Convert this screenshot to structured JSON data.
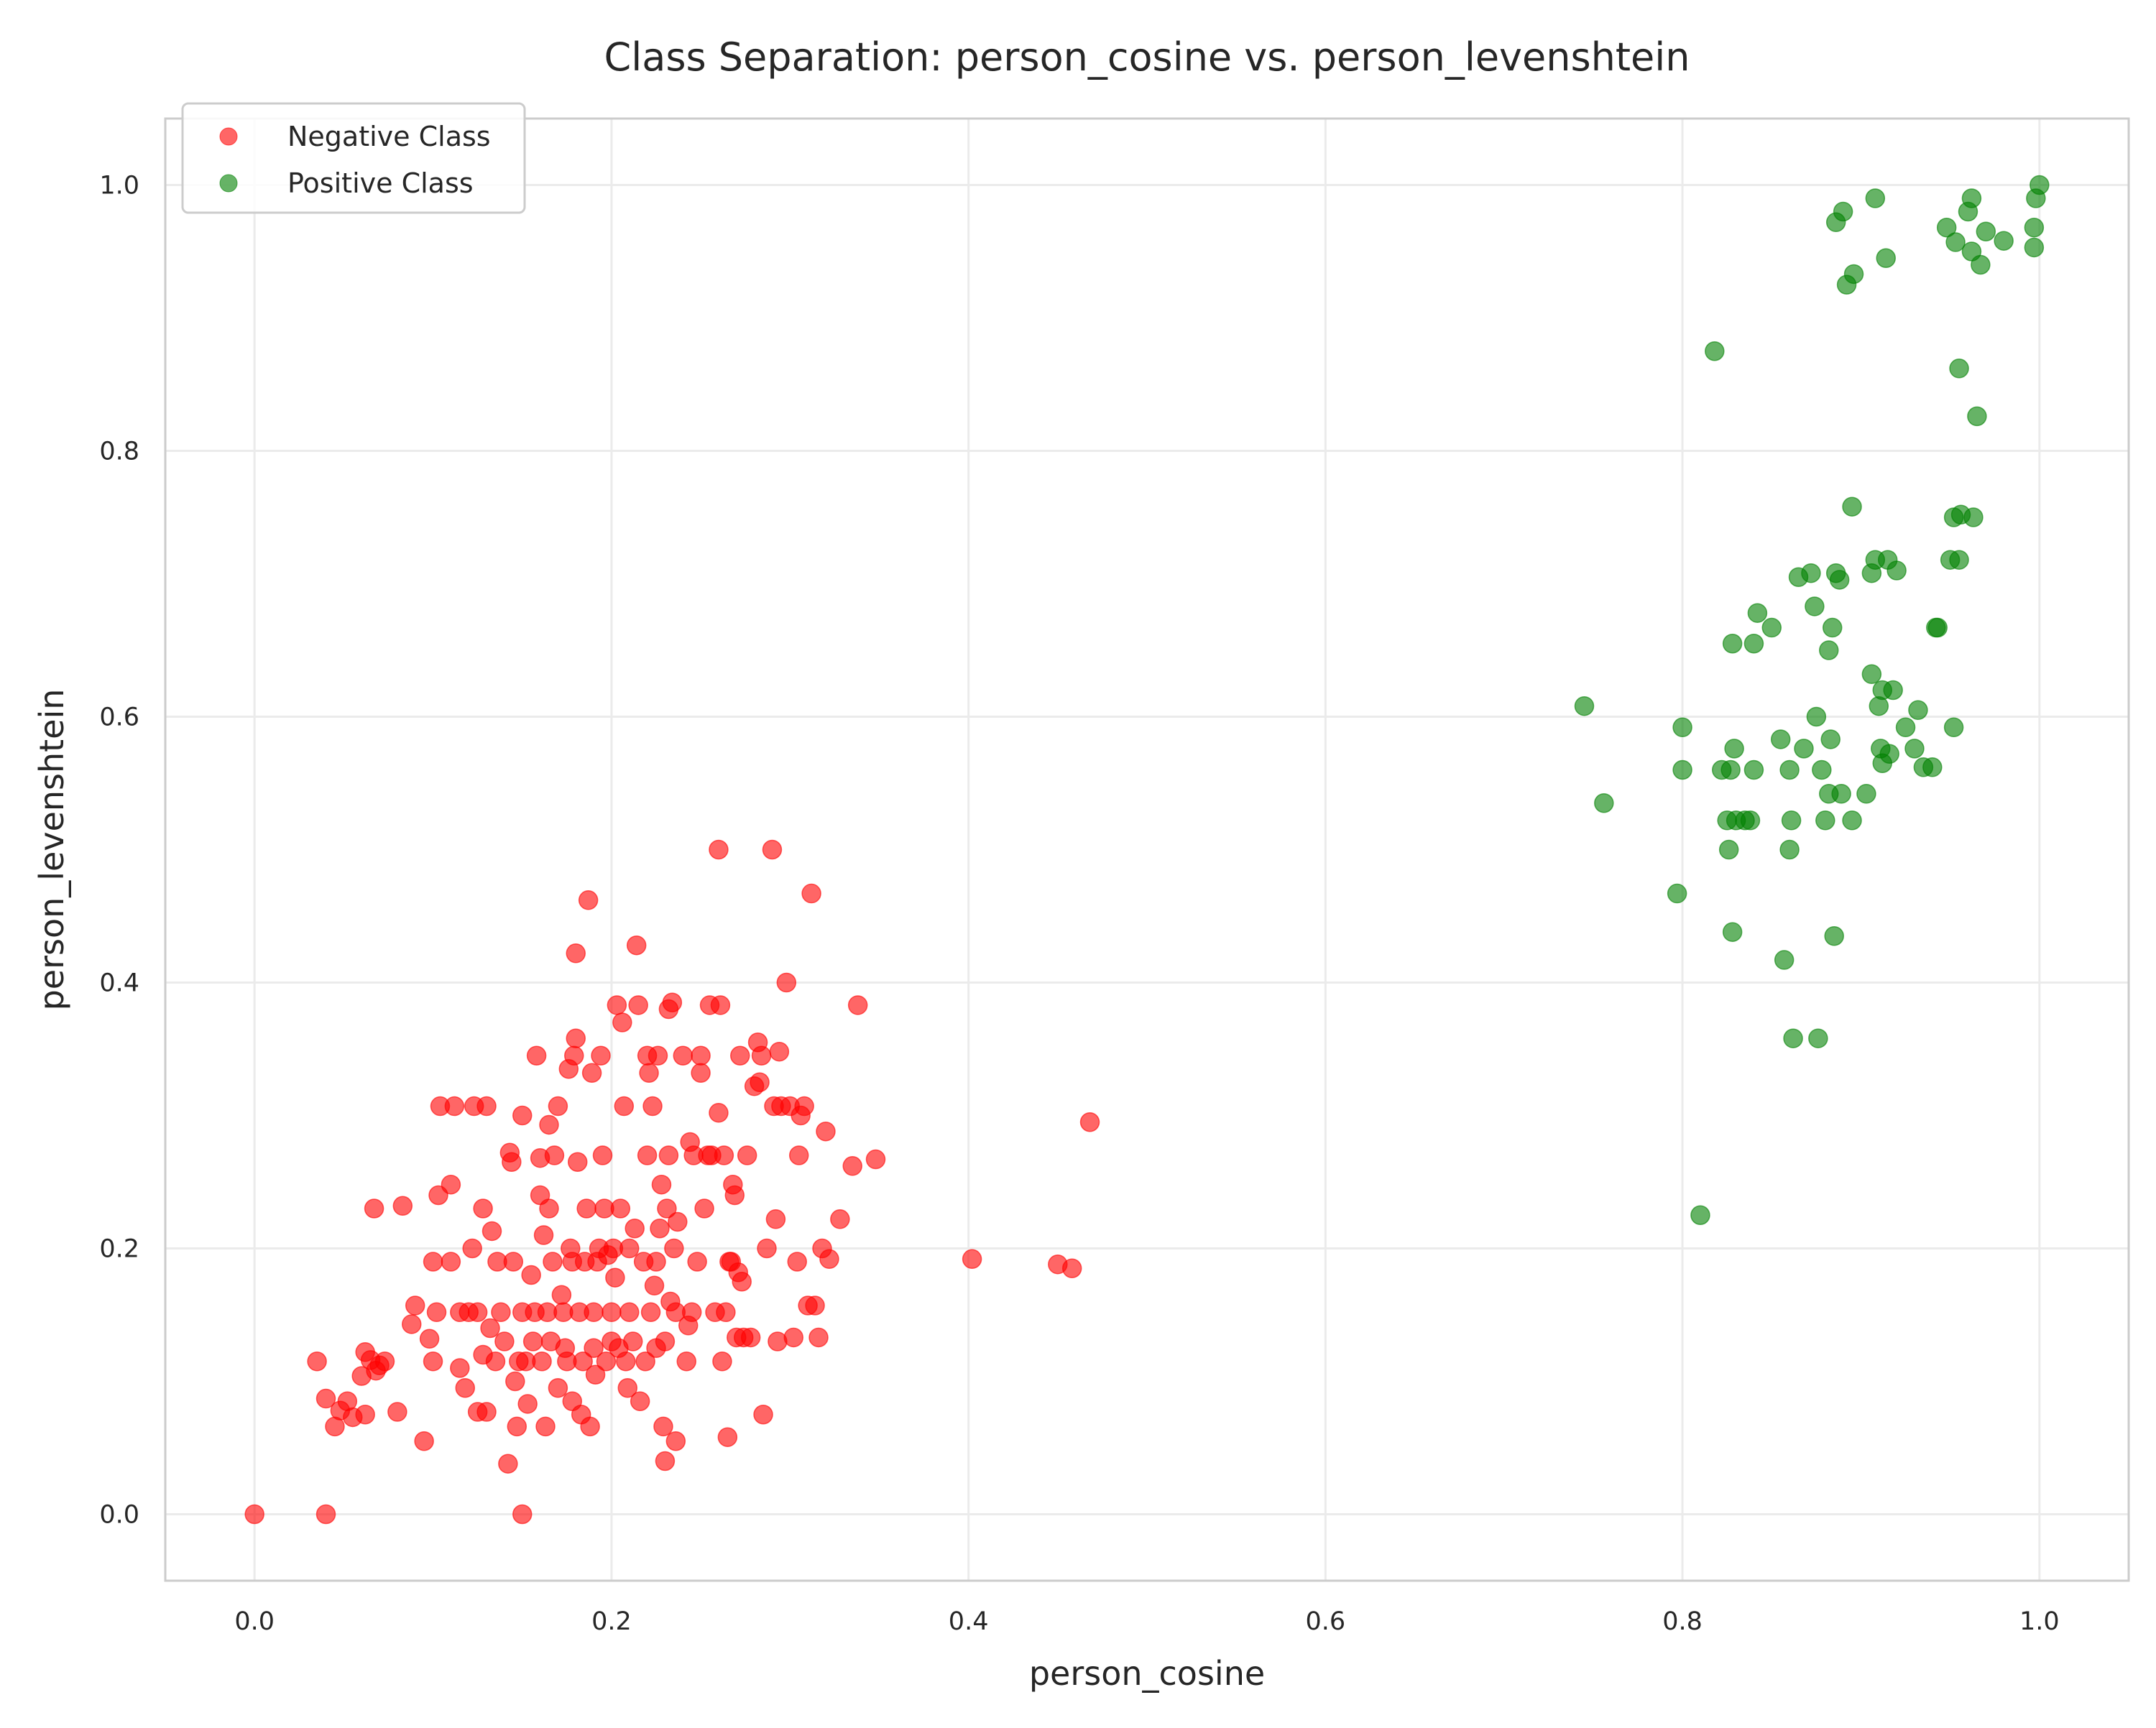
{
  "chart_data": {
    "type": "scatter",
    "title": "Class Separation: person_cosine vs. person_levenshtein",
    "xlabel": "person_cosine",
    "ylabel": "person_levenshtein",
    "xlim": [
      -0.05,
      1.05
    ],
    "ylim": [
      -0.05,
      1.05
    ],
    "xticks": [
      0.0,
      0.2,
      0.4,
      0.6,
      0.8,
      1.0
    ],
    "xtick_labels": [
      "0.0",
      "0.2",
      "0.4",
      "0.6",
      "0.8",
      "1.0"
    ],
    "yticks": [
      0.0,
      0.2,
      0.4,
      0.6,
      0.8,
      1.0
    ],
    "ytick_labels": [
      "0.0",
      "0.2",
      "0.4",
      "0.6",
      "0.8",
      "1.0"
    ],
    "grid": true,
    "legend_position": "top-left",
    "series": [
      {
        "name": "Negative Class",
        "color": "#ff0000",
        "points": [
          [
            0.0,
            0.0
          ],
          [
            0.04,
            0.0
          ],
          [
            0.15,
            0.0
          ],
          [
            0.035,
            0.115
          ],
          [
            0.04,
            0.087
          ],
          [
            0.045,
            0.066
          ],
          [
            0.048,
            0.078
          ],
          [
            0.052,
            0.085
          ],
          [
            0.055,
            0.073
          ],
          [
            0.06,
            0.104
          ],
          [
            0.062,
            0.122
          ],
          [
            0.065,
            0.116
          ],
          [
            0.068,
            0.108
          ],
          [
            0.07,
            0.112
          ],
          [
            0.062,
            0.075
          ],
          [
            0.073,
            0.115
          ],
          [
            0.067,
            0.23
          ],
          [
            0.083,
            0.232
          ],
          [
            0.08,
            0.077
          ],
          [
            0.088,
            0.143
          ],
          [
            0.09,
            0.157
          ],
          [
            0.095,
            0.055
          ],
          [
            0.098,
            0.132
          ],
          [
            0.1,
            0.19
          ],
          [
            0.1,
            0.115
          ],
          [
            0.102,
            0.152
          ],
          [
            0.103,
            0.24
          ],
          [
            0.104,
            0.307
          ],
          [
            0.11,
            0.19
          ],
          [
            0.11,
            0.248
          ],
          [
            0.112,
            0.307
          ],
          [
            0.115,
            0.152
          ],
          [
            0.115,
            0.11
          ],
          [
            0.118,
            0.095
          ],
          [
            0.12,
            0.152
          ],
          [
            0.122,
            0.2
          ],
          [
            0.123,
            0.307
          ],
          [
            0.125,
            0.077
          ],
          [
            0.125,
            0.152
          ],
          [
            0.128,
            0.12
          ],
          [
            0.128,
            0.23
          ],
          [
            0.13,
            0.307
          ],
          [
            0.132,
            0.14
          ],
          [
            0.13,
            0.077
          ],
          [
            0.133,
            0.213
          ],
          [
            0.135,
            0.115
          ],
          [
            0.136,
            0.19
          ],
          [
            0.138,
            0.152
          ],
          [
            0.14,
            0.13
          ],
          [
            0.142,
            0.038
          ],
          [
            0.143,
            0.272
          ],
          [
            0.144,
            0.265
          ],
          [
            0.145,
            0.19
          ],
          [
            0.146,
            0.1
          ],
          [
            0.147,
            0.066
          ],
          [
            0.148,
            0.115
          ],
          [
            0.15,
            0.3
          ],
          [
            0.15,
            0.152
          ],
          [
            0.152,
            0.115
          ],
          [
            0.153,
            0.083
          ],
          [
            0.155,
            0.18
          ],
          [
            0.156,
            0.13
          ],
          [
            0.157,
            0.152
          ],
          [
            0.158,
            0.345
          ],
          [
            0.16,
            0.24
          ],
          [
            0.16,
            0.268
          ],
          [
            0.161,
            0.115
          ],
          [
            0.162,
            0.21
          ],
          [
            0.163,
            0.066
          ],
          [
            0.164,
            0.152
          ],
          [
            0.165,
            0.293
          ],
          [
            0.165,
            0.23
          ],
          [
            0.166,
            0.13
          ],
          [
            0.167,
            0.19
          ],
          [
            0.168,
            0.27
          ],
          [
            0.17,
            0.307
          ],
          [
            0.17,
            0.095
          ],
          [
            0.172,
            0.165
          ],
          [
            0.173,
            0.152
          ],
          [
            0.174,
            0.125
          ],
          [
            0.175,
            0.115
          ],
          [
            0.176,
            0.335
          ],
          [
            0.177,
            0.2
          ],
          [
            0.178,
            0.085
          ],
          [
            0.178,
            0.19
          ],
          [
            0.179,
            0.345
          ],
          [
            0.18,
            0.358
          ],
          [
            0.18,
            0.422
          ],
          [
            0.181,
            0.265
          ],
          [
            0.182,
            0.152
          ],
          [
            0.183,
            0.075
          ],
          [
            0.184,
            0.115
          ],
          [
            0.185,
            0.19
          ],
          [
            0.186,
            0.23
          ],
          [
            0.187,
            0.462
          ],
          [
            0.188,
            0.066
          ],
          [
            0.189,
            0.332
          ],
          [
            0.19,
            0.125
          ],
          [
            0.19,
            0.152
          ],
          [
            0.191,
            0.105
          ],
          [
            0.192,
            0.19
          ],
          [
            0.193,
            0.2
          ],
          [
            0.194,
            0.345
          ],
          [
            0.195,
            0.27
          ],
          [
            0.196,
            0.23
          ],
          [
            0.197,
            0.115
          ],
          [
            0.198,
            0.195
          ],
          [
            0.2,
            0.152
          ],
          [
            0.2,
            0.13
          ],
          [
            0.201,
            0.2
          ],
          [
            0.202,
            0.178
          ],
          [
            0.203,
            0.383
          ],
          [
            0.204,
            0.125
          ],
          [
            0.205,
            0.23
          ],
          [
            0.206,
            0.37
          ],
          [
            0.207,
            0.307
          ],
          [
            0.208,
            0.115
          ],
          [
            0.209,
            0.095
          ],
          [
            0.21,
            0.2
          ],
          [
            0.21,
            0.152
          ],
          [
            0.212,
            0.13
          ],
          [
            0.213,
            0.215
          ],
          [
            0.214,
            0.428
          ],
          [
            0.215,
            0.383
          ],
          [
            0.216,
            0.085
          ],
          [
            0.218,
            0.19
          ],
          [
            0.219,
            0.115
          ],
          [
            0.22,
            0.345
          ],
          [
            0.22,
            0.27
          ],
          [
            0.221,
            0.332
          ],
          [
            0.222,
            0.152
          ],
          [
            0.223,
            0.307
          ],
          [
            0.224,
            0.172
          ],
          [
            0.225,
            0.125
          ],
          [
            0.225,
            0.19
          ],
          [
            0.226,
            0.345
          ],
          [
            0.227,
            0.215
          ],
          [
            0.228,
            0.248
          ],
          [
            0.229,
            0.066
          ],
          [
            0.23,
            0.04
          ],
          [
            0.23,
            0.13
          ],
          [
            0.231,
            0.23
          ],
          [
            0.232,
            0.27
          ],
          [
            0.232,
            0.38
          ],
          [
            0.233,
            0.16
          ],
          [
            0.234,
            0.385
          ],
          [
            0.235,
            0.2
          ],
          [
            0.236,
            0.152
          ],
          [
            0.236,
            0.055
          ],
          [
            0.237,
            0.22
          ],
          [
            0.24,
            0.345
          ],
          [
            0.242,
            0.115
          ],
          [
            0.243,
            0.142
          ],
          [
            0.244,
            0.28
          ],
          [
            0.245,
            0.152
          ],
          [
            0.246,
            0.27
          ],
          [
            0.248,
            0.19
          ],
          [
            0.25,
            0.332
          ],
          [
            0.25,
            0.345
          ],
          [
            0.252,
            0.23
          ],
          [
            0.254,
            0.27
          ],
          [
            0.255,
            0.383
          ],
          [
            0.256,
            0.27
          ],
          [
            0.258,
            0.152
          ],
          [
            0.26,
            0.302
          ],
          [
            0.26,
            0.5
          ],
          [
            0.261,
            0.383
          ],
          [
            0.262,
            0.115
          ],
          [
            0.263,
            0.27
          ],
          [
            0.264,
            0.152
          ],
          [
            0.265,
            0.058
          ],
          [
            0.266,
            0.19
          ],
          [
            0.267,
            0.19
          ],
          [
            0.268,
            0.248
          ],
          [
            0.269,
            0.24
          ],
          [
            0.27,
            0.133
          ],
          [
            0.271,
            0.182
          ],
          [
            0.272,
            0.345
          ],
          [
            0.273,
            0.175
          ],
          [
            0.274,
            0.133
          ],
          [
            0.276,
            0.27
          ],
          [
            0.278,
            0.133
          ],
          [
            0.28,
            0.322
          ],
          [
            0.282,
            0.355
          ],
          [
            0.283,
            0.325
          ],
          [
            0.284,
            0.345
          ],
          [
            0.285,
            0.075
          ],
          [
            0.287,
            0.2
          ],
          [
            0.29,
            0.5
          ],
          [
            0.291,
            0.307
          ],
          [
            0.292,
            0.222
          ],
          [
            0.293,
            0.13
          ],
          [
            0.294,
            0.348
          ],
          [
            0.295,
            0.307
          ],
          [
            0.298,
            0.4
          ],
          [
            0.3,
            0.307
          ],
          [
            0.302,
            0.133
          ],
          [
            0.304,
            0.19
          ],
          [
            0.305,
            0.27
          ],
          [
            0.306,
            0.3
          ],
          [
            0.308,
            0.307
          ],
          [
            0.31,
            0.157
          ],
          [
            0.312,
            0.467
          ],
          [
            0.314,
            0.157
          ],
          [
            0.316,
            0.133
          ],
          [
            0.318,
            0.2
          ],
          [
            0.32,
            0.288
          ],
          [
            0.322,
            0.192
          ],
          [
            0.328,
            0.222
          ],
          [
            0.335,
            0.262
          ],
          [
            0.338,
            0.383
          ],
          [
            0.348,
            0.267
          ],
          [
            0.402,
            0.192
          ],
          [
            0.45,
            0.188
          ],
          [
            0.458,
            0.185
          ],
          [
            0.468,
            0.295
          ]
        ]
      },
      {
        "name": "Positive Class",
        "color": "#008000",
        "points": [
          [
            0.745,
            0.608
          ],
          [
            0.756,
            0.535
          ],
          [
            0.797,
            0.467
          ],
          [
            0.8,
            0.592
          ],
          [
            0.8,
            0.56
          ],
          [
            0.81,
            0.225
          ],
          [
            0.818,
            0.875
          ],
          [
            0.822,
            0.56
          ],
          [
            0.825,
            0.522
          ],
          [
            0.826,
            0.5
          ],
          [
            0.827,
            0.56
          ],
          [
            0.828,
            0.438
          ],
          [
            0.828,
            0.655
          ],
          [
            0.829,
            0.576
          ],
          [
            0.83,
            0.522
          ],
          [
            0.835,
            0.522
          ],
          [
            0.838,
            0.522
          ],
          [
            0.84,
            0.56
          ],
          [
            0.84,
            0.655
          ],
          [
            0.842,
            0.678
          ],
          [
            0.85,
            0.667
          ],
          [
            0.855,
            0.583
          ],
          [
            0.857,
            0.417
          ],
          [
            0.86,
            0.56
          ],
          [
            0.86,
            0.5
          ],
          [
            0.861,
            0.522
          ],
          [
            0.862,
            0.358
          ],
          [
            0.865,
            0.705
          ],
          [
            0.868,
            0.576
          ],
          [
            0.872,
            0.708
          ],
          [
            0.874,
            0.683
          ],
          [
            0.875,
            0.6
          ],
          [
            0.876,
            0.358
          ],
          [
            0.878,
            0.56
          ],
          [
            0.88,
            0.522
          ],
          [
            0.882,
            0.542
          ],
          [
            0.882,
            0.65
          ],
          [
            0.883,
            0.583
          ],
          [
            0.884,
            0.667
          ],
          [
            0.885,
            0.435
          ],
          [
            0.886,
            0.708
          ],
          [
            0.886,
            0.972
          ],
          [
            0.888,
            0.703
          ],
          [
            0.889,
            0.542
          ],
          [
            0.89,
            0.98
          ],
          [
            0.892,
            0.925
          ],
          [
            0.895,
            0.758
          ],
          [
            0.895,
            0.522
          ],
          [
            0.896,
            0.933
          ],
          [
            0.903,
            0.542
          ],
          [
            0.906,
            0.708
          ],
          [
            0.906,
            0.632
          ],
          [
            0.908,
            0.99
          ],
          [
            0.908,
            0.718
          ],
          [
            0.91,
            0.608
          ],
          [
            0.911,
            0.576
          ],
          [
            0.912,
            0.565
          ],
          [
            0.912,
            0.62
          ],
          [
            0.914,
            0.945
          ],
          [
            0.915,
            0.718
          ],
          [
            0.916,
            0.572
          ],
          [
            0.918,
            0.62
          ],
          [
            0.92,
            0.71
          ],
          [
            0.925,
            0.592
          ],
          [
            0.93,
            0.576
          ],
          [
            0.932,
            0.605
          ],
          [
            0.935,
            0.562
          ],
          [
            0.94,
            0.562
          ],
          [
            0.942,
            0.667
          ],
          [
            0.943,
            0.667
          ],
          [
            0.948,
            0.968
          ],
          [
            0.95,
            0.718
          ],
          [
            0.952,
            0.592
          ],
          [
            0.952,
            0.75
          ],
          [
            0.953,
            0.957
          ],
          [
            0.955,
            0.718
          ],
          [
            0.955,
            0.862
          ],
          [
            0.956,
            0.752
          ],
          [
            0.96,
            0.98
          ],
          [
            0.962,
            0.95
          ],
          [
            0.962,
            0.99
          ],
          [
            0.963,
            0.75
          ],
          [
            0.965,
            0.826
          ],
          [
            0.967,
            0.94
          ],
          [
            0.97,
            0.965
          ],
          [
            0.98,
            0.958
          ],
          [
            0.997,
            0.953
          ],
          [
            0.997,
            0.968
          ],
          [
            0.998,
            0.99
          ],
          [
            1.0,
            1.0
          ]
        ]
      }
    ]
  }
}
